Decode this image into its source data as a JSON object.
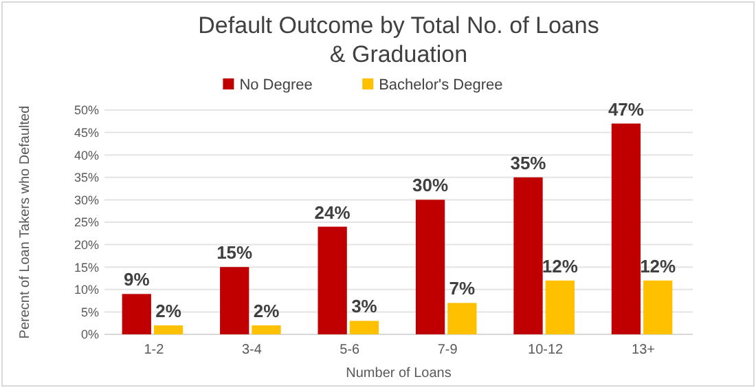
{
  "chart_data": {
    "type": "bar",
    "title": "Default Outcome by Total No. of Loans\n& Graduation",
    "xlabel": "Number of Loans",
    "ylabel": "Perecnt of Loan Takers who Defaulted",
    "categories": [
      "1-2",
      "3-4",
      "5-6",
      "7-9",
      "10-12",
      "13+"
    ],
    "series": [
      {
        "name": "No Degree",
        "color": "#c00000",
        "values": [
          9,
          15,
          24,
          30,
          35,
          47
        ],
        "value_labels": [
          "9%",
          "15%",
          "24%",
          "30%",
          "35%",
          "47%"
        ]
      },
      {
        "name": "Bachelor's Degree",
        "color": "#ffc000",
        "values": [
          2,
          2,
          3,
          7,
          12,
          12
        ],
        "value_labels": [
          "2%",
          "2%",
          "3%",
          "7%",
          "12%",
          "12%"
        ]
      }
    ],
    "ylim": [
      0,
      50
    ],
    "yticks": [
      {
        "value": 0,
        "label": "0%"
      },
      {
        "value": 5,
        "label": "5%"
      },
      {
        "value": 10,
        "label": "10%"
      },
      {
        "value": 15,
        "label": "15%"
      },
      {
        "value": 20,
        "label": "20%"
      },
      {
        "value": 25,
        "label": "25%"
      },
      {
        "value": 30,
        "label": "30%"
      },
      {
        "value": 35,
        "label": "35%"
      },
      {
        "value": 40,
        "label": "40%"
      },
      {
        "value": 45,
        "label": "45%"
      },
      {
        "value": 50,
        "label": "50%"
      }
    ],
    "grid": "y",
    "legend": "top"
  }
}
